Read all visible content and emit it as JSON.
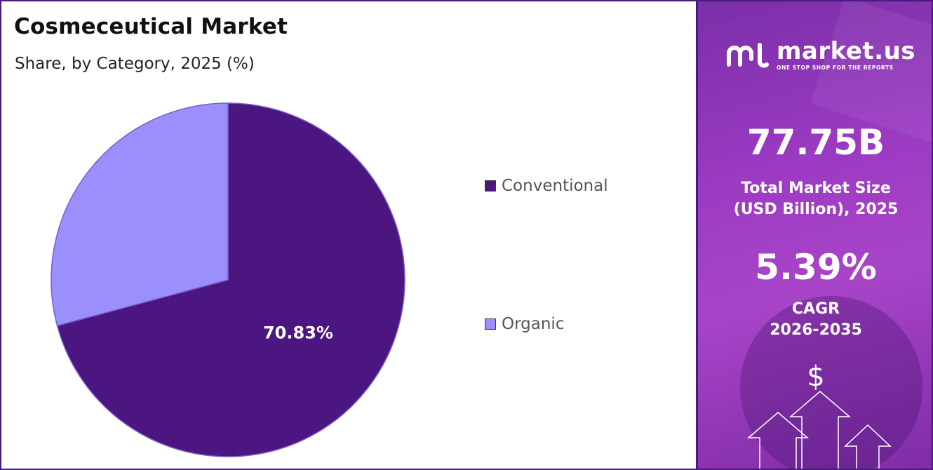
{
  "title": "Cosmeceutical Market",
  "subtitle": "Share, by Category, 2025 (%)",
  "chart_data": {
    "type": "pie",
    "categories": [
      "Conventional",
      "Organic"
    ],
    "values": [
      70.83,
      29.17
    ],
    "data_labels": [
      "70.83%",
      ""
    ],
    "colors": [
      "#4b1680",
      "#9b8ffd"
    ],
    "start_angle_deg": 0,
    "direction": "clockwise",
    "legend_position": "right"
  },
  "legend": [
    {
      "label": "Conventional",
      "color": "#4b1680"
    },
    {
      "label": "Organic",
      "color": "#9b8ffd"
    }
  ],
  "brand": {
    "name": "market.us",
    "tagline": "ONE STOP SHOP FOR THE REPORTS"
  },
  "stats": {
    "market_size_value": "77.75B",
    "market_size_label_1": "Total Market Size",
    "market_size_label_2": "(USD Billion), 2025",
    "cagr_value": "5.39%",
    "cagr_label_1": "CAGR",
    "cagr_label_2": "2026-2035"
  },
  "currency_symbol": "$",
  "icons": [
    "market-us-logo-icon",
    "dollar-icon",
    "up-arrow-icon"
  ]
}
